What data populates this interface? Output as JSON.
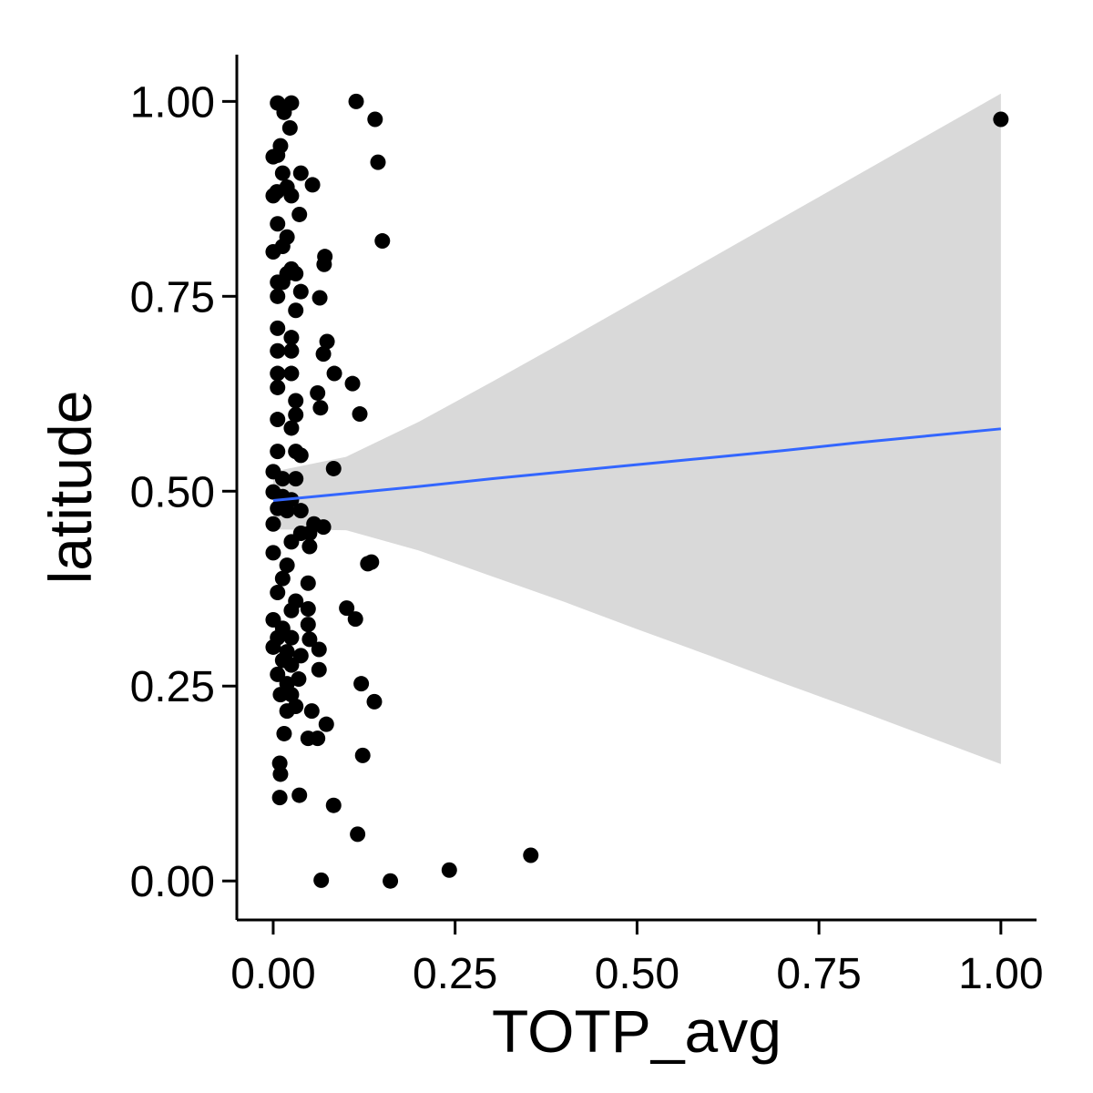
{
  "chart_data": {
    "type": "scatter",
    "x_label": "TOTP_avg",
    "y_label": "latitude",
    "xlim": [
      -0.05,
      1.049
    ],
    "ylim": [
      -0.05,
      1.06
    ],
    "xticks": [
      {
        "value": 0,
        "label": "0.00"
      },
      {
        "value": 0.25,
        "label": "0.25"
      },
      {
        "value": 0.5,
        "label": "0.50"
      },
      {
        "value": 0.75,
        "label": "0.75"
      },
      {
        "value": 1,
        "label": "1.00"
      }
    ],
    "yticks": [
      {
        "value": 0,
        "label": "0.00"
      },
      {
        "value": 0.25,
        "label": "0.25"
      },
      {
        "value": 0.5,
        "label": "0.50"
      },
      {
        "value": 0.75,
        "label": "0.75"
      },
      {
        "value": 1,
        "label": "1.00"
      }
    ],
    "point_color": "#000000",
    "x": [
      1.0,
      0.114,
      0.14,
      0.144,
      0.15,
      0.354,
      0.242,
      0.161,
      0.066,
      0.116,
      0.083,
      0.036,
      0.009,
      0.01,
      0.009,
      0.123,
      0.139,
      0.121,
      0.073,
      0.061,
      0.048,
      0.053,
      0.113,
      0.101,
      0.13,
      0.135,
      0.119,
      0.109,
      0.084,
      0.083,
      0.074,
      0.069,
      0.07,
      0.071,
      0.064,
      0.061,
      0.065,
      0.054,
      0.038,
      0.036,
      0.025,
      0.006,
      0.015,
      0.023,
      0.006,
      0.01,
      0.0,
      0.013,
      0.0,
      0.005,
      0.019,
      0.025,
      0.006,
      0.019,
      0.0,
      0.013,
      0.025,
      0.019,
      0.031,
      0.006,
      0.013,
      0.006,
      0.038,
      0.031,
      0.006,
      0.025,
      0.006,
      0.025,
      0.006,
      0.025,
      0.006,
      0.031,
      0.006,
      0.031,
      0.025,
      0.006,
      0.031,
      0.038,
      0.0,
      0.013,
      0.031,
      0.0,
      0.013,
      0.025,
      0.006,
      0.019,
      0.038,
      0.0,
      0.056,
      0.069,
      0.05,
      0.038,
      0.025,
      0.05,
      0.0,
      0.019,
      0.013,
      0.048,
      0.006,
      0.031,
      0.048,
      0.025,
      0.0,
      0.048,
      0.013,
      0.006,
      0.025,
      0.05,
      0.0,
      0.019,
      0.063,
      0.038,
      0.013,
      0.025,
      0.063,
      0.006,
      0.035,
      0.019,
      0.025,
      0.01,
      0.019,
      0.031,
      0.015
    ],
    "y": [
      0.977,
      1.0,
      0.977,
      0.922,
      0.821,
      0.033,
      0.014,
      0.0,
      0.001,
      0.06,
      0.097,
      0.11,
      0.107,
      0.137,
      0.151,
      0.161,
      0.23,
      0.253,
      0.201,
      0.183,
      0.183,
      0.218,
      0.336,
      0.35,
      0.407,
      0.409,
      0.599,
      0.638,
      0.651,
      0.529,
      0.692,
      0.676,
      0.791,
      0.801,
      0.748,
      0.626,
      0.607,
      0.893,
      0.908,
      0.855,
      0.998,
      0.998,
      0.986,
      0.966,
      0.931,
      0.943,
      0.929,
      0.908,
      0.879,
      0.884,
      0.89,
      0.879,
      0.843,
      0.826,
      0.807,
      0.814,
      0.785,
      0.779,
      0.779,
      0.768,
      0.768,
      0.75,
      0.756,
      0.732,
      0.709,
      0.697,
      0.68,
      0.68,
      0.651,
      0.651,
      0.633,
      0.616,
      0.592,
      0.598,
      0.581,
      0.551,
      0.551,
      0.546,
      0.525,
      0.516,
      0.516,
      0.499,
      0.493,
      0.489,
      0.478,
      0.475,
      0.475,
      0.458,
      0.458,
      0.454,
      0.446,
      0.446,
      0.435,
      0.429,
      0.421,
      0.405,
      0.388,
      0.382,
      0.37,
      0.359,
      0.349,
      0.347,
      0.335,
      0.329,
      0.324,
      0.312,
      0.312,
      0.31,
      0.3,
      0.294,
      0.297,
      0.289,
      0.283,
      0.277,
      0.271,
      0.265,
      0.259,
      0.253,
      0.239,
      0.239,
      0.218,
      0.224,
      0.189
    ],
    "smooth": {
      "color": "#3366ff",
      "band_color": "#d9d9d9",
      "x": [
        0,
        0.1,
        0.2,
        0.3,
        0.4,
        0.5,
        0.6,
        0.7,
        0.8,
        0.9,
        1.0
      ],
      "y": [
        0.488,
        0.497,
        0.506,
        0.516,
        0.525,
        0.534,
        0.543,
        0.552,
        0.562,
        0.571,
        0.58
      ],
      "lower": [
        0.451,
        0.45,
        0.424,
        0.391,
        0.358,
        0.323,
        0.289,
        0.254,
        0.22,
        0.185,
        0.15
      ],
      "upper": [
        0.525,
        0.544,
        0.589,
        0.64,
        0.692,
        0.745,
        0.798,
        0.851,
        0.904,
        0.957,
        1.01
      ]
    }
  }
}
